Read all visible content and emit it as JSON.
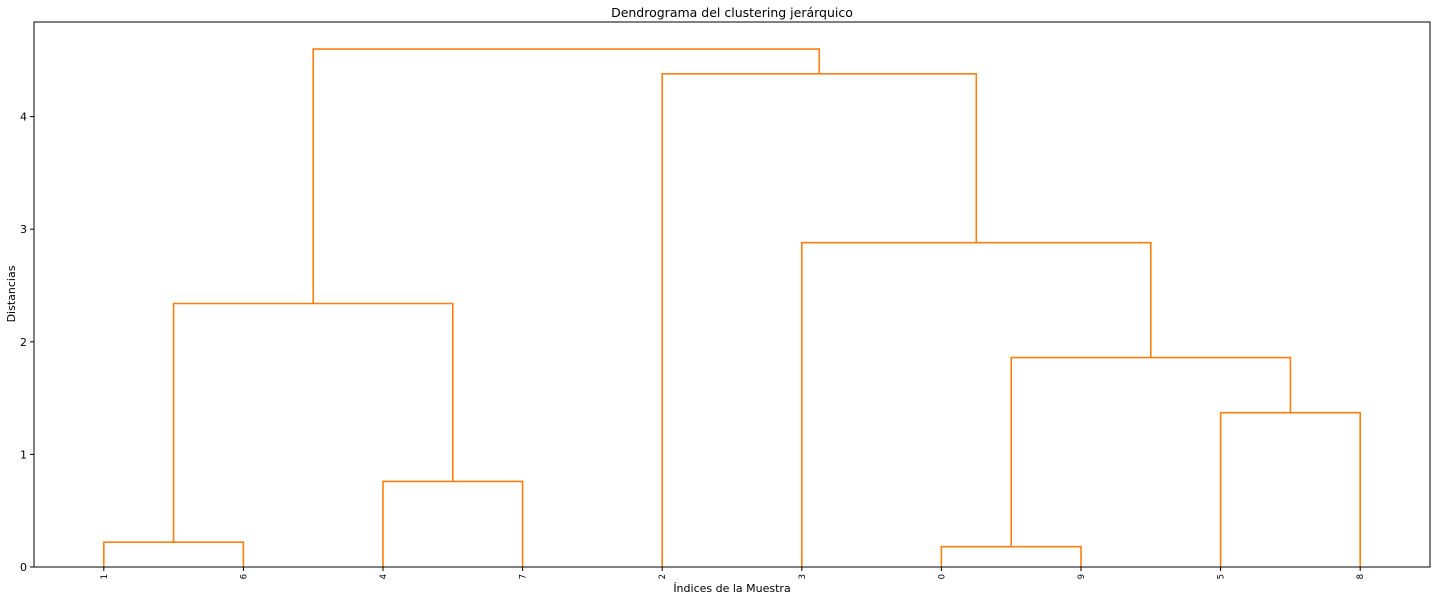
{
  "chart_data": {
    "type": "dendrogram",
    "title": "Dendrograma del clustering jerárquico",
    "xlabel": "Índices de la Muestra",
    "ylabel": "Distancias",
    "ylim": [
      0,
      4.84
    ],
    "yticks": [
      0,
      1,
      2,
      3,
      4
    ],
    "grid": false,
    "color": "#ff7f0e",
    "leaves": [
      "1",
      "6",
      "4",
      "7",
      "2",
      "3",
      "0",
      "9",
      "5",
      "8"
    ],
    "merges": [
      {
        "id": "c16",
        "left": "1",
        "right": "6",
        "distance": 0.22
      },
      {
        "id": "c47",
        "left": "4",
        "right": "7",
        "distance": 0.76
      },
      {
        "id": "c09",
        "left": "0",
        "right": "9",
        "distance": 0.18
      },
      {
        "id": "c58",
        "left": "5",
        "right": "8",
        "distance": 1.37
      },
      {
        "id": "c0958",
        "left": "c09",
        "right": "c58",
        "distance": 1.86
      },
      {
        "id": "c1647",
        "left": "c16",
        "right": "c47",
        "distance": 2.34
      },
      {
        "id": "c3rest",
        "left": "3",
        "right": "c0958",
        "distance": 2.88
      },
      {
        "id": "c2rest",
        "left": "2",
        "right": "c3rest",
        "distance": 4.38
      },
      {
        "id": "root",
        "left": "c1647",
        "right": "c2rest",
        "distance": 4.6
      }
    ]
  }
}
